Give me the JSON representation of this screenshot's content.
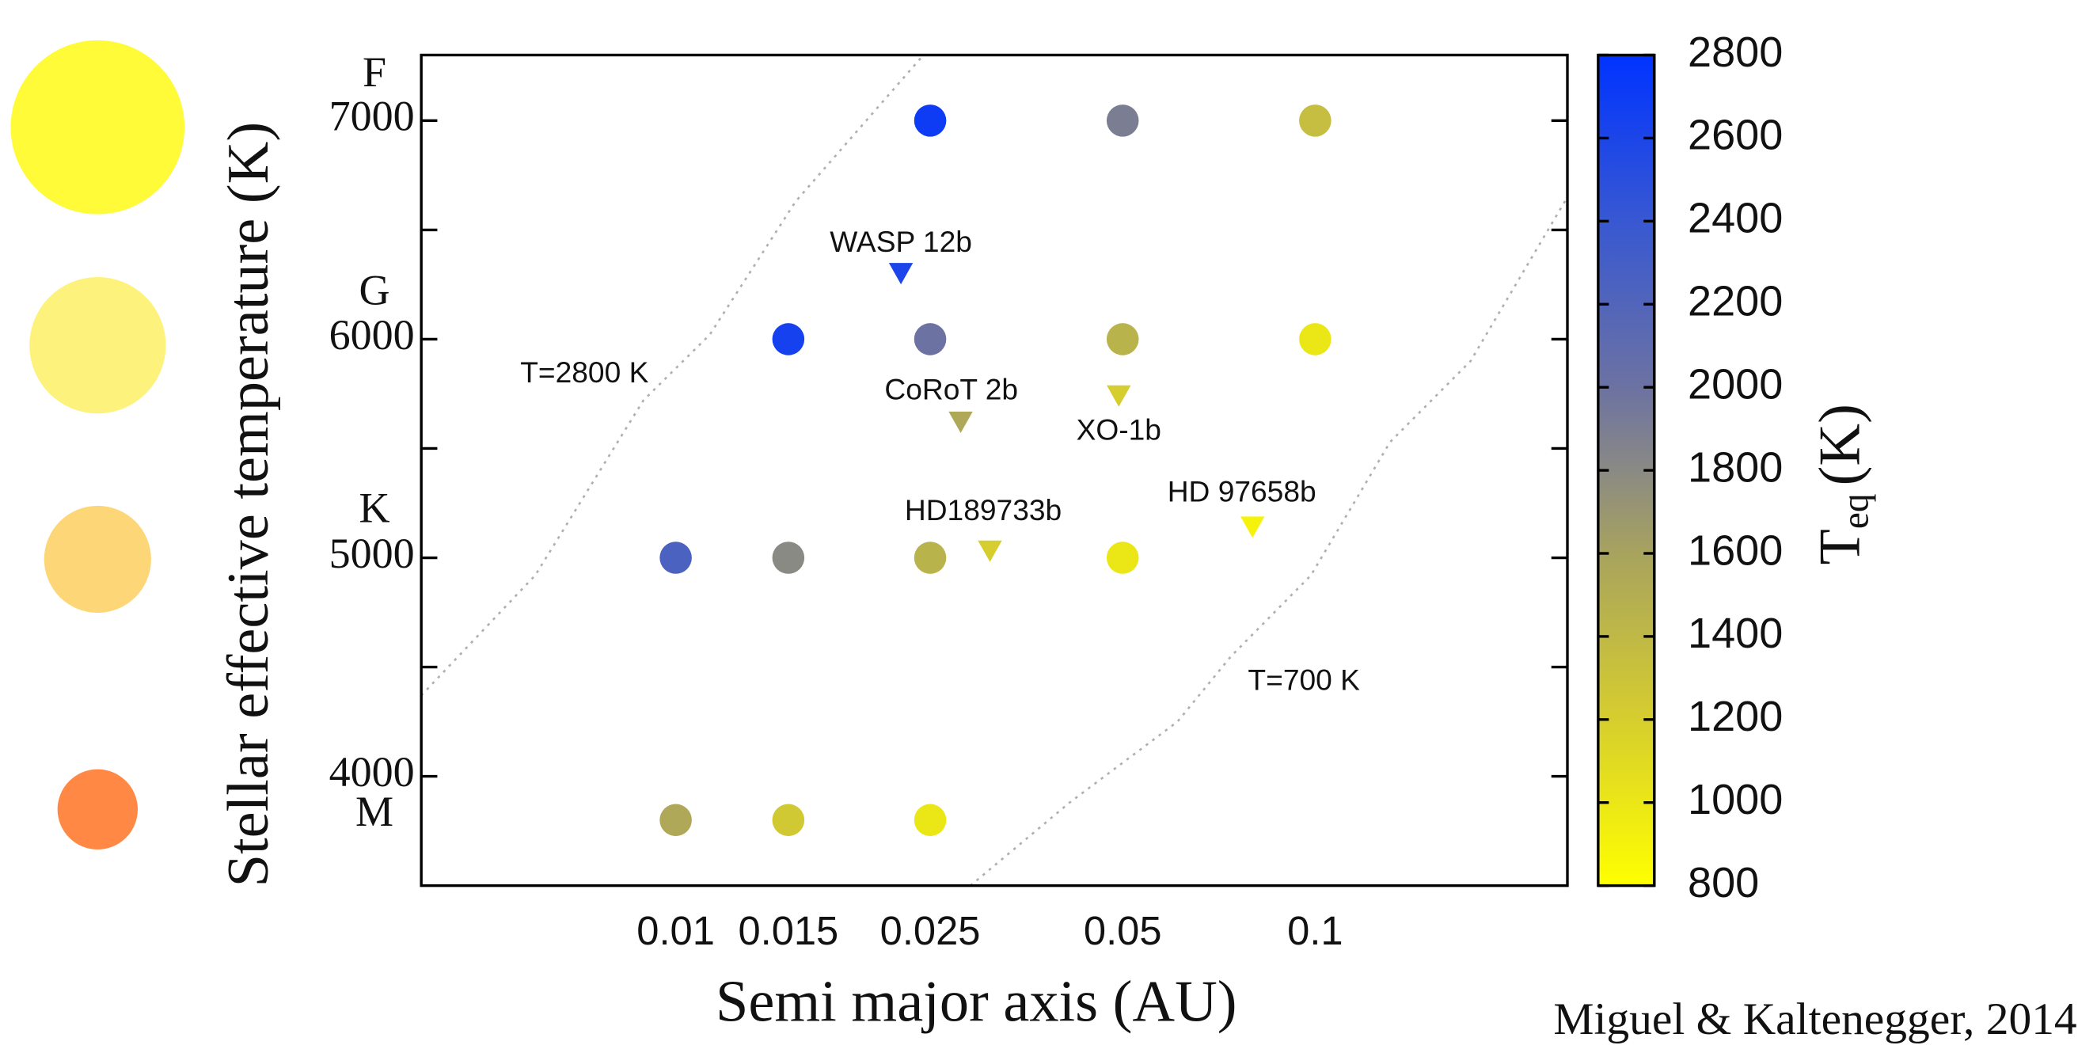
{
  "chart_data": {
    "type": "scatter",
    "xlabel": "Semi major axis (AU)",
    "ylabel": "Stellar effective temperature (K)",
    "source": "Miguel & Kaltenegger, 2014",
    "xscale": "log",
    "xlim": [
      0.004,
      0.248
    ],
    "xticks": [
      0.01,
      0.015,
      0.025,
      0.05,
      0.1
    ],
    "ylim": [
      3500,
      7300
    ],
    "yticks": [
      4000,
      5000,
      6000,
      7000
    ],
    "yminorticks": [
      4500,
      5500,
      6500
    ],
    "spectral_classes": [
      "F",
      "G",
      "K",
      "M"
    ],
    "colorbar": {
      "label": "T",
      "label_sub": "eq",
      "label_unit": "(K)",
      "lim": [
        800,
        2800
      ],
      "ticks": [
        800,
        1000,
        1200,
        1400,
        1600,
        1800,
        2000,
        2200,
        2400,
        2600,
        2800
      ],
      "colormap": [
        {
          "value": 800,
          "color": "#ffff00"
        },
        {
          "value": 1200,
          "color": "#d6ce2e"
        },
        {
          "value": 1600,
          "color": "#a8a35e"
        },
        {
          "value": 1800,
          "color": "#8a8a84"
        },
        {
          "value": 2000,
          "color": "#6c72a2"
        },
        {
          "value": 2400,
          "color": "#3858d2"
        },
        {
          "value": 2800,
          "color": "#0033ff"
        }
      ]
    },
    "series": [
      {
        "marker": "circle",
        "x": [
          0.025,
          0.05,
          0.1,
          0.015,
          0.025,
          0.05,
          0.1,
          0.01,
          0.015,
          0.025,
          0.05,
          0.01,
          0.015,
          0.025
        ],
        "values": [
          7000,
          7000,
          7000,
          6000,
          6000,
          6000,
          6000,
          5000,
          5000,
          5000,
          5000,
          3800,
          3800,
          3800
        ],
        "color_values": [
          2700,
          1900,
          1350,
          2650,
          2000,
          1450,
          1000,
          2250,
          1800,
          1450,
          1000,
          1550,
          1250,
          1000
        ]
      },
      {
        "marker": "triangle",
        "labels": [
          "WASP 12b",
          "CoRoT 2b",
          "XO-1b",
          "HD189733b",
          "HD 97658b"
        ],
        "x": [
          0.0225,
          0.0279,
          0.0493,
          0.031,
          0.0798
        ],
        "values": [
          6300,
          5620,
          5740,
          5030,
          5140
        ],
        "color_values": [
          2600,
          1550,
          1200,
          1200,
          900
        ]
      },
      {
        "marker": "line",
        "name": "T=2800 K",
        "color": "#b0b0b0",
        "x": [
          0.004,
          0.00603,
          0.0089,
          0.0113,
          0.0154,
          0.0244
        ],
        "values": [
          4370,
          4920,
          5720,
          6020,
          6630,
          7300
        ]
      },
      {
        "marker": "line",
        "name": "T=700 K",
        "color": "#b0b0b0",
        "x": [
          0.0289,
          0.0413,
          0.0609,
          0.0739,
          0.0985,
          0.131,
          0.175,
          0.248
        ],
        "values": [
          3500,
          3880,
          4250,
          4550,
          4920,
          5530,
          5900,
          6650
        ]
      }
    ]
  }
}
